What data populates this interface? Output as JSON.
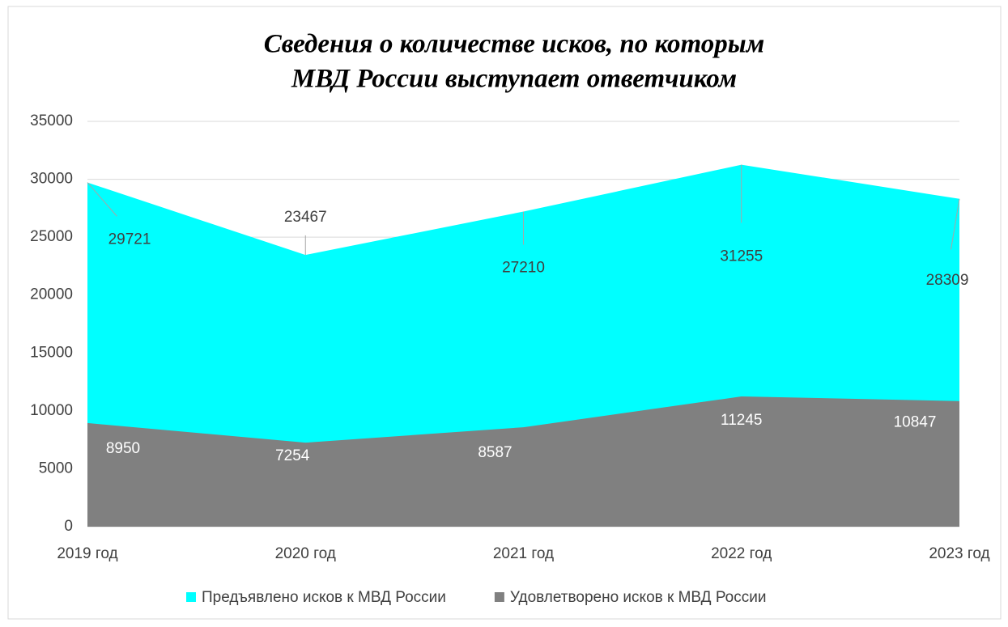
{
  "chart_data": {
    "type": "area",
    "title": [
      "Сведения о количестве исков, по которым",
      "МВД России выступает ответчиком"
    ],
    "categories": [
      "2019 год",
      "2020 год",
      "2021 год",
      "2022 год",
      "2023 год"
    ],
    "series": [
      {
        "name": "Предъявлено исков к МВД России",
        "color": "#00ffff",
        "values": [
          29721,
          23467,
          27210,
          31255,
          28309
        ]
      },
      {
        "name": "Удовлетворено исков к МВД России",
        "color": "#808080",
        "values": [
          8950,
          7254,
          8587,
          11245,
          10847
        ]
      }
    ],
    "ylim": [
      0,
      35000
    ],
    "yticks": [
      0,
      5000,
      10000,
      15000,
      20000,
      25000,
      30000,
      35000
    ],
    "grid": true,
    "legend": "bottom"
  }
}
